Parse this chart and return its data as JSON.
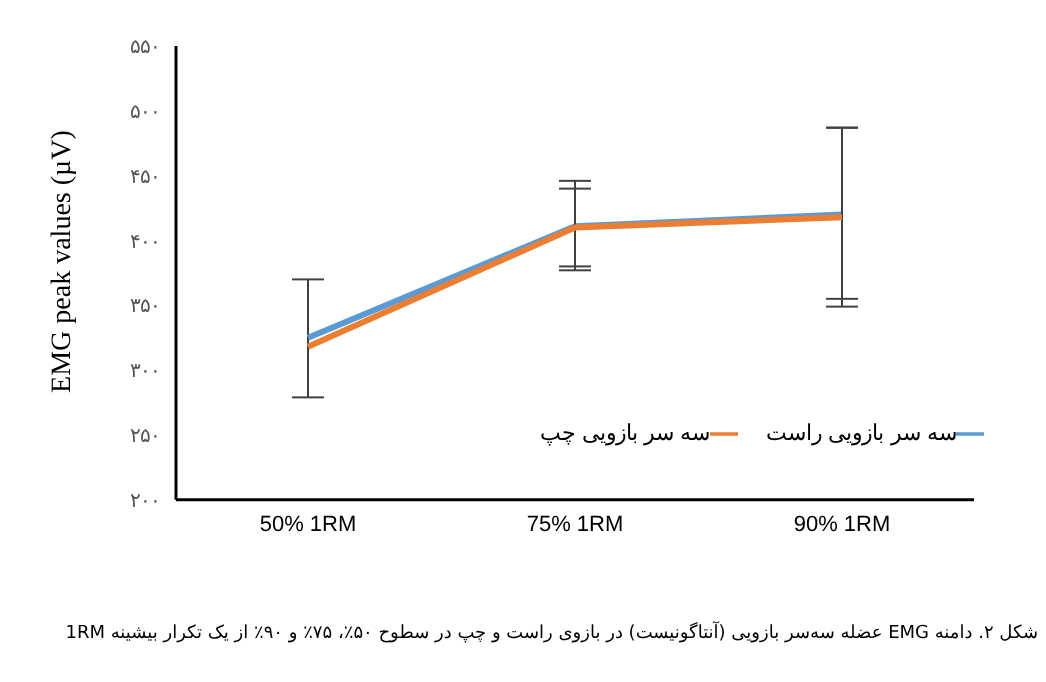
{
  "chart_data": {
    "type": "line",
    "ylabel": "EMG peak values (µV)",
    "categories": [
      "50% 1RM",
      "75% 1RM",
      "90% 1RM"
    ],
    "series": [
      {
        "name": "سه سر بازویی راست",
        "color": "#5b9bd5",
        "values": [
          325,
          411,
          420
        ],
        "errors": [
          [
            279,
            370
          ],
          [
            380,
            446
          ],
          [
            355,
            487
          ]
        ]
      },
      {
        "name": "سه سر بازویی چپ",
        "color": "#ed7d31",
        "values": [
          318,
          410,
          418
        ],
        "errors": [
          null,
          [
            377,
            440
          ],
          [
            349,
            487
          ]
        ]
      }
    ],
    "ylim": [
      200,
      550
    ],
    "yticks": [
      {
        "value": 200,
        "label": "۲۰۰"
      },
      {
        "value": 250,
        "label": "۲۵۰"
      },
      {
        "value": 300,
        "label": "۳۰۰"
      },
      {
        "value": 350,
        "label": "۳۵۰"
      },
      {
        "value": 400,
        "label": "۴۰۰"
      },
      {
        "value": 450,
        "label": "۴۵۰"
      },
      {
        "value": 500,
        "label": "۵۰۰"
      },
      {
        "value": 550,
        "label": "۵۵۰"
      }
    ],
    "grid": false,
    "legend": "bottom right",
    "marker": "none",
    "line_style": "solid",
    "annotations": [
      "شکل ۲. دامنه EMG عضله سه‌سر بازویی (آنتاگونیست) در بازوی راست و چپ در سطوح ۵۰٪، ۷۵٪ و ۹۰٪ از یک تکرار بیشینه 1RM"
    ]
  }
}
